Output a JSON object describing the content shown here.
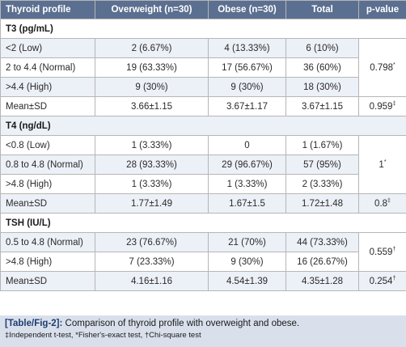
{
  "header": [
    "Thyroid profile",
    "Overweight (n=30)",
    "Obese (n=30)",
    "Total",
    "p-value"
  ],
  "sections": [
    {
      "title": "T3 (pg/mL)",
      "rows": [
        {
          "label": "<2 (Low)",
          "overweight": "2 (6.67%)",
          "obese": "4 (13.33%)",
          "total": "6 (10%)"
        },
        {
          "label": "2 to 4.4 (Normal)",
          "overweight": "19 (63.33%)",
          "obese": "17 (56.67%)",
          "total": "36 (60%)"
        },
        {
          "label": ">4.4 (High)",
          "overweight": "9 (30%)",
          "obese": "9 (30%)",
          "total": "18 (30%)"
        },
        {
          "label": "Mean±SD",
          "overweight": "3.66±1.15",
          "obese": "3.67±1.17",
          "total": "3.67±1.15"
        }
      ],
      "pvalue_main": "0.798",
      "pvalue_main_mark": "*",
      "pvalue_mean": "0.959",
      "pvalue_mean_mark": "‡"
    },
    {
      "title": "T4 (ng/dL)",
      "rows": [
        {
          "label": "<0.8 (Low)",
          "overweight": "1 (3.33%)",
          "obese": "0",
          "total": "1 (1.67%)"
        },
        {
          "label": "0.8 to 4.8 (Normal)",
          "overweight": "28 (93.33%)",
          "obese": "29 (96.67%)",
          "total": "57 (95%)"
        },
        {
          "label": ">4.8 (High)",
          "overweight": "1 (3.33%)",
          "obese": "1 (3.33%)",
          "total": "2 (3.33%)"
        },
        {
          "label": "Mean±SD",
          "overweight": "1.77±1.49",
          "obese": "1.67±1.5",
          "total": "1.72±1.48"
        }
      ],
      "pvalue_main": "1",
      "pvalue_main_mark": "*",
      "pvalue_mean": "0.8",
      "pvalue_mean_mark": "‡"
    },
    {
      "title": "TSH (IU/L)",
      "rows": [
        {
          "label": "0.5 to 4.8 (Normal)",
          "overweight": "23 (76.67%)",
          "obese": "21 (70%)",
          "total": "44 (73.33%)"
        },
        {
          "label": ">4.8 (High)",
          "overweight": "7 (23.33%)",
          "obese": "9 (30%)",
          "total": "16 (26.67%)"
        },
        {
          "label": "Mean±SD",
          "overweight": "4.16±1.16",
          "obese": "4.54±1.39",
          "total": "4.35±1.28"
        }
      ],
      "pvalue_main": "0.559",
      "pvalue_main_mark": "†",
      "pvalue_mean": "0.254",
      "pvalue_mean_mark": "†"
    }
  ],
  "caption": {
    "label": "[Table/Fig-2]:",
    "text": " Comparison of thyroid profile with overweight and obese.",
    "footnote": "‡Independent t-test, *Fisher's-exact test, †Chi-square test"
  },
  "colors": {
    "header_bg": "#5b6f90",
    "row_shade": "#ecf0f7",
    "caption_bg": "#d9e0ec",
    "caption_label": "#1e3c6e"
  }
}
